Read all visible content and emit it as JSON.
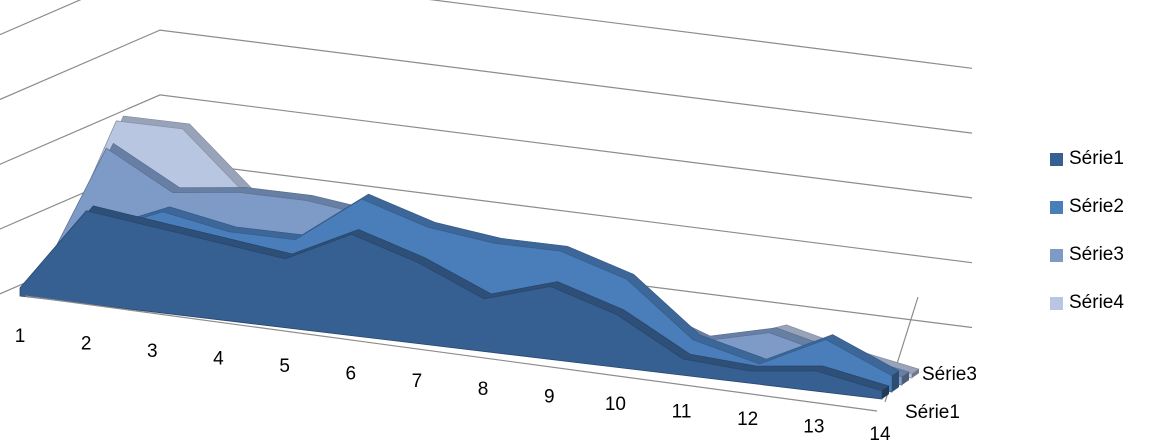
{
  "chart_data": {
    "type": "area",
    "title": "",
    "xlabel": "",
    "ylabel": "",
    "categories": [
      "1",
      "2",
      "3",
      "4",
      "5",
      "6",
      "7",
      "8",
      "9",
      "10",
      "11",
      "12",
      "13",
      "14"
    ],
    "depth_labels": [
      "Série1",
      "Série3"
    ],
    "grid": true,
    "legend_position": "right",
    "series": [
      {
        "name": "Série1",
        "color": "#376092",
        "values": [
          2,
          23,
          21,
          19,
          17,
          25,
          20,
          13,
          18,
          13,
          4,
          3,
          5,
          2
        ]
      },
      {
        "name": "Série2",
        "color": "#4a7ebb",
        "values": [
          1,
          16,
          23,
          20,
          20,
          32,
          27,
          25,
          25,
          20,
          7,
          3,
          11,
          4
        ]
      },
      {
        "name": "Série3",
        "color": "#7e9bc8",
        "values": [
          1,
          35,
          26,
          28,
          28,
          26,
          20,
          17,
          14,
          11,
          5,
          9,
          5,
          2
        ]
      },
      {
        "name": "Série4",
        "color": "#b9c6e2",
        "values": [
          1,
          40,
          40,
          25,
          18,
          24,
          14,
          8,
          7,
          6,
          2,
          8,
          4,
          1
        ]
      }
    ]
  }
}
